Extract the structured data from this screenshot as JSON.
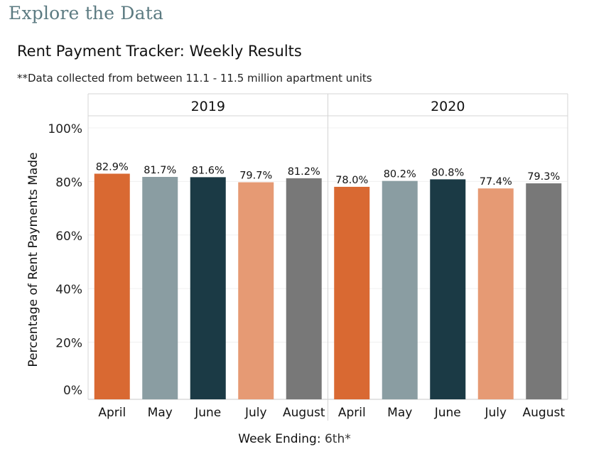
{
  "page": {
    "section_title": "Explore the Data",
    "chart_title": "Rent Payment Tracker: Weekly Results",
    "note": "**Data collected from between 11.1 - 11.5 million apartment units",
    "x_axis_prefix": "Week Ending: ",
    "x_axis_value": "6th*"
  },
  "colors": {
    "April": "#d96932",
    "May": "#8a9da2",
    "June": "#1b3a45",
    "July": "#e69a74",
    "August": "#787878",
    "header": "#5c7b82"
  },
  "chart_data": {
    "type": "bar",
    "ylabel": "Percentage of Rent Payments Made",
    "xlabel": "Week Ending: 6th*",
    "ylim": [
      0,
      100
    ],
    "yticks": [
      "0%",
      "20%",
      "40%",
      "60%",
      "80%",
      "100%"
    ],
    "categories": [
      "April",
      "May",
      "June",
      "July",
      "August"
    ],
    "series": [
      {
        "name": "2019",
        "values": [
          82.9,
          81.7,
          81.6,
          79.7,
          81.2
        ],
        "labels": [
          "82.9%",
          "81.7%",
          "81.6%",
          "79.7%",
          "81.2%"
        ]
      },
      {
        "name": "2020",
        "values": [
          78.0,
          80.2,
          80.8,
          77.4,
          79.3
        ],
        "labels": [
          "78.0%",
          "80.2%",
          "80.8%",
          "77.4%",
          "79.3%"
        ]
      }
    ],
    "grid": true
  }
}
